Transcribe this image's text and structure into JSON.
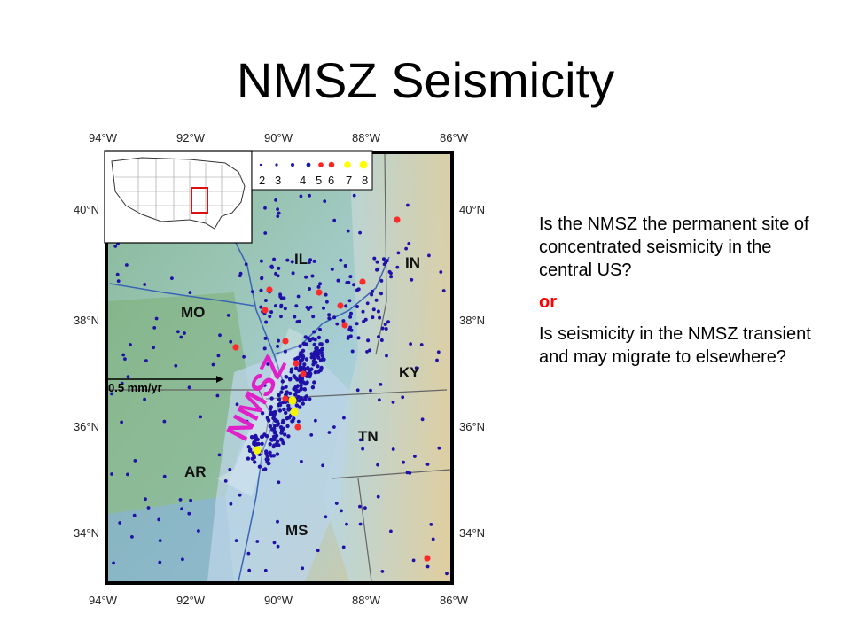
{
  "title": "NMSZ Seismicity",
  "map": {
    "lon_labels": [
      "94°W",
      "92°W",
      "90°W",
      "88°W",
      "86°W"
    ],
    "lat_labels": [
      "40°N",
      "38°N",
      "36°N",
      "34°N"
    ],
    "state_labels": [
      "IL",
      "IN",
      "MO",
      "KY",
      "TN",
      "AR",
      "MS"
    ],
    "zone_label": "NMSZ",
    "scale_label": "0.5 mm/yr",
    "legend": {
      "magnitudes": [
        "2",
        "3",
        "4",
        "5",
        "6",
        "7",
        "8"
      ],
      "colors": [
        "#1a1aa8",
        "#1a1aa8",
        "#1a1aa8",
        "#1a1aa8",
        "#ff2020",
        "#ff2020",
        "#ffff00",
        "#ffff00"
      ]
    },
    "colors": {
      "dot_blue": "#1f10a8",
      "dot_red": "#ff2a2a",
      "dot_yellow": "#f4f400",
      "zone_text": "#e020c8",
      "inset_box": "#e01010"
    }
  },
  "text": {
    "q1": "Is the NMSZ the permanent site of concentrated seismicity in the central US?",
    "or": "or",
    "q2": "Is seismicity in the NMSZ transient and may migrate to elsewhere?"
  }
}
